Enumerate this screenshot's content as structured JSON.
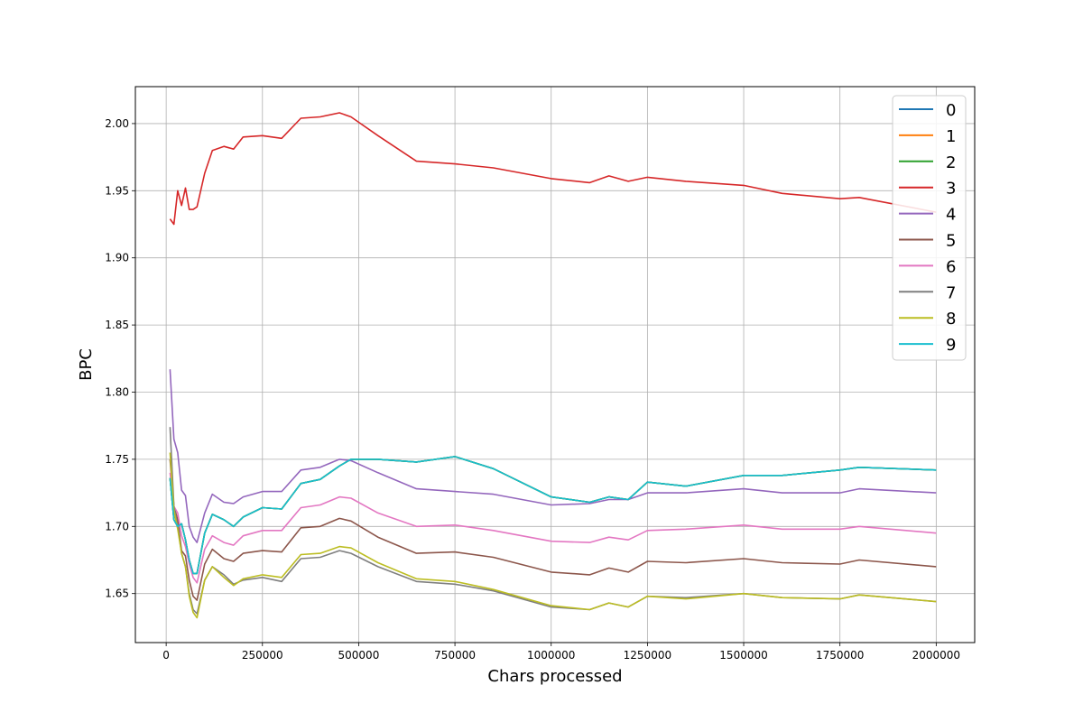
{
  "chart_data": {
    "type": "line",
    "xlabel": "Chars processed",
    "ylabel": "BPC",
    "xlim": [
      -80000,
      2100000
    ],
    "ylim": [
      1.6135,
      2.0275
    ],
    "xticks": [
      0,
      250000,
      500000,
      750000,
      1000000,
      1250000,
      1500000,
      1750000,
      2000000
    ],
    "yticks": [
      1.65,
      1.7,
      1.75,
      1.8,
      1.85,
      1.9,
      1.95,
      2.0
    ],
    "grid": true,
    "legend_position": "top-right",
    "x": [
      10000,
      20000,
      30000,
      40000,
      50000,
      60000,
      70000,
      80000,
      100000,
      120000,
      150000,
      175000,
      200000,
      250000,
      300000,
      350000,
      400000,
      450000,
      480000,
      550000,
      650000,
      750000,
      850000,
      1000000,
      1100000,
      1150000,
      1200000,
      1250000,
      1350000,
      1500000,
      1600000,
      1750000,
      1800000,
      2000000
    ],
    "series": [
      {
        "name": "0",
        "color": "#1f77b4",
        "values": [
          1.736,
          1.705,
          1.7,
          1.702,
          1.69,
          1.675,
          1.665,
          1.665,
          1.695,
          1.709,
          1.705,
          1.7,
          1.707,
          1.714,
          1.713,
          1.732,
          1.735,
          1.745,
          1.75,
          1.75,
          1.748,
          1.752,
          1.743,
          1.722,
          1.718,
          1.722,
          1.72,
          1.733,
          1.73,
          1.738,
          1.738,
          1.742,
          1.744,
          1.742
        ]
      },
      {
        "name": "1",
        "color": "#ff7f0e",
        "values": [
          1.736,
          1.705,
          1.7,
          1.702,
          1.69,
          1.675,
          1.665,
          1.665,
          1.695,
          1.709,
          1.705,
          1.7,
          1.707,
          1.714,
          1.713,
          1.732,
          1.735,
          1.745,
          1.75,
          1.75,
          1.748,
          1.752,
          1.743,
          1.722,
          1.718,
          1.722,
          1.72,
          1.733,
          1.73,
          1.738,
          1.738,
          1.742,
          1.744,
          1.742
        ]
      },
      {
        "name": "2",
        "color": "#2ca02c",
        "values": [
          1.736,
          1.705,
          1.7,
          1.702,
          1.69,
          1.675,
          1.665,
          1.665,
          1.695,
          1.709,
          1.705,
          1.7,
          1.707,
          1.714,
          1.713,
          1.732,
          1.735,
          1.745,
          1.75,
          1.75,
          1.748,
          1.752,
          1.743,
          1.722,
          1.718,
          1.722,
          1.72,
          1.733,
          1.73,
          1.738,
          1.738,
          1.742,
          1.744,
          1.742
        ]
      },
      {
        "name": "3",
        "color": "#d62728",
        "values": [
          1.929,
          1.925,
          1.95,
          1.939,
          1.952,
          1.936,
          1.936,
          1.938,
          1.963,
          1.98,
          1.983,
          1.981,
          1.99,
          1.991,
          1.989,
          2.004,
          2.005,
          2.008,
          2.005,
          1.991,
          1.972,
          1.97,
          1.967,
          1.959,
          1.956,
          1.961,
          1.957,
          1.96,
          1.957,
          1.954,
          1.948,
          1.944,
          1.945,
          1.934
        ]
      },
      {
        "name": "4",
        "color": "#9467bd",
        "values": [
          1.817,
          1.765,
          1.755,
          1.727,
          1.723,
          1.7,
          1.692,
          1.688,
          1.71,
          1.724,
          1.718,
          1.717,
          1.722,
          1.726,
          1.726,
          1.742,
          1.744,
          1.75,
          1.749,
          1.74,
          1.728,
          1.726,
          1.724,
          1.716,
          1.717,
          1.72,
          1.72,
          1.725,
          1.725,
          1.728,
          1.725,
          1.725,
          1.728,
          1.725
        ]
      },
      {
        "name": "5",
        "color": "#8c564b",
        "values": [
          1.75,
          1.715,
          1.705,
          1.682,
          1.678,
          1.66,
          1.648,
          1.645,
          1.672,
          1.683,
          1.676,
          1.674,
          1.68,
          1.682,
          1.681,
          1.699,
          1.7,
          1.706,
          1.704,
          1.692,
          1.68,
          1.681,
          1.677,
          1.666,
          1.664,
          1.669,
          1.666,
          1.674,
          1.673,
          1.676,
          1.673,
          1.672,
          1.675,
          1.67
        ]
      },
      {
        "name": "6",
        "color": "#e377c2",
        "values": [
          1.74,
          1.715,
          1.71,
          1.693,
          1.685,
          1.672,
          1.662,
          1.658,
          1.683,
          1.693,
          1.688,
          1.686,
          1.693,
          1.697,
          1.697,
          1.714,
          1.716,
          1.722,
          1.721,
          1.71,
          1.7,
          1.701,
          1.697,
          1.689,
          1.688,
          1.692,
          1.69,
          1.697,
          1.698,
          1.701,
          1.698,
          1.698,
          1.7,
          1.695
        ]
      },
      {
        "name": "7",
        "color": "#7f7f7f",
        "values": [
          1.774,
          1.715,
          1.7,
          1.68,
          1.67,
          1.65,
          1.638,
          1.635,
          1.66,
          1.67,
          1.664,
          1.657,
          1.66,
          1.662,
          1.659,
          1.676,
          1.677,
          1.682,
          1.68,
          1.67,
          1.659,
          1.657,
          1.652,
          1.64,
          1.638,
          1.643,
          1.64,
          1.648,
          1.647,
          1.65,
          1.647,
          1.646,
          1.649,
          1.644
        ]
      },
      {
        "name": "8",
        "color": "#bcbd22",
        "values": [
          1.755,
          1.712,
          1.698,
          1.68,
          1.67,
          1.648,
          1.636,
          1.632,
          1.66,
          1.67,
          1.662,
          1.656,
          1.661,
          1.664,
          1.662,
          1.679,
          1.68,
          1.685,
          1.684,
          1.673,
          1.661,
          1.659,
          1.653,
          1.641,
          1.638,
          1.643,
          1.64,
          1.648,
          1.646,
          1.65,
          1.647,
          1.646,
          1.649,
          1.644
        ]
      },
      {
        "name": "9",
        "color": "#17becf",
        "values": [
          1.736,
          1.705,
          1.7,
          1.702,
          1.69,
          1.675,
          1.665,
          1.665,
          1.695,
          1.709,
          1.705,
          1.7,
          1.707,
          1.714,
          1.713,
          1.732,
          1.735,
          1.745,
          1.75,
          1.75,
          1.748,
          1.752,
          1.743,
          1.722,
          1.718,
          1.722,
          1.72,
          1.733,
          1.73,
          1.738,
          1.738,
          1.742,
          1.744,
          1.742
        ]
      }
    ]
  }
}
